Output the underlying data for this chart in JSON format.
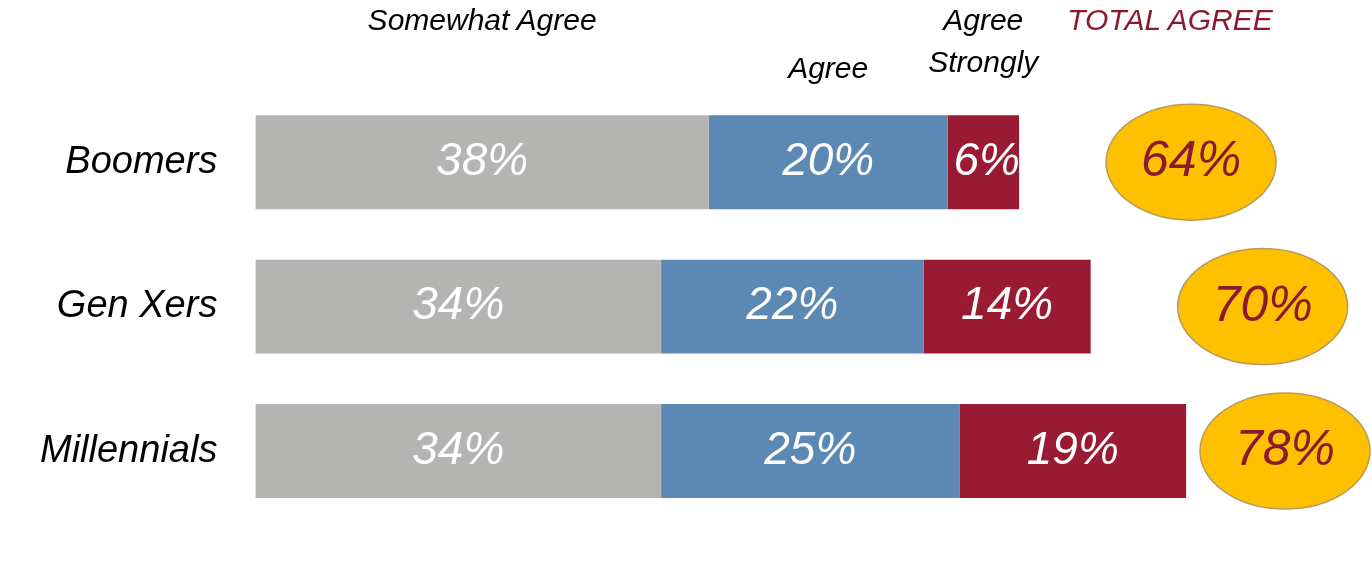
{
  "chart_data": {
    "type": "bar",
    "orientation": "horizontal",
    "stacked": true,
    "categories": [
      "Boomers",
      "Gen Xers",
      "Millennials"
    ],
    "series": [
      {
        "name": "Somewhat Agree",
        "color": "#b4b5b2",
        "values": [
          38,
          34,
          34
        ],
        "value_labels": [
          "38%",
          "34%",
          "34%"
        ]
      },
      {
        "name": "Agree",
        "color": "#5b89b3",
        "values": [
          20,
          22,
          25
        ],
        "value_labels": [
          "20%",
          "22%",
          "25%"
        ]
      },
      {
        "name": "Agree Strongly",
        "color": "#9b1a33",
        "values": [
          6,
          14,
          19
        ],
        "value_labels": [
          "6%",
          "14%",
          "19%"
        ]
      }
    ],
    "totals": [
      "64%",
      "70%",
      "78%"
    ],
    "annotations": [
      "TOTAL AGREE"
    ],
    "tick_labels": "y",
    "legend": false
  }
}
